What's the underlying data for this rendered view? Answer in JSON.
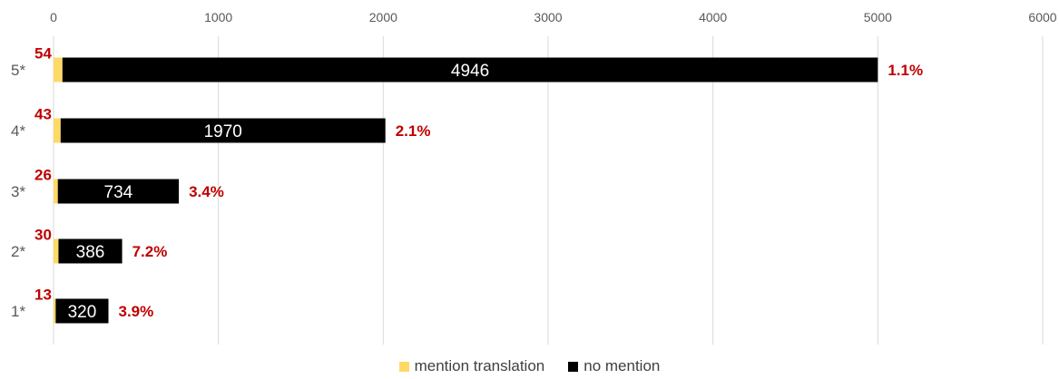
{
  "chart_data": {
    "type": "bar",
    "orientation": "horizontal",
    "stacked": true,
    "categories": [
      "5*",
      "4*",
      "3*",
      "2*",
      "1*"
    ],
    "series": [
      {
        "name": "mention translation",
        "values": [
          54,
          43,
          26,
          30,
          13
        ],
        "color": "#ffd966"
      },
      {
        "name": "no mention",
        "values": [
          4946,
          1970,
          734,
          386,
          320
        ],
        "color": "#000000"
      }
    ],
    "percent_labels": [
      "1.1%",
      "2.1%",
      "3.4%",
      "7.2%",
      "3.9%"
    ],
    "xlim": [
      0,
      6000
    ],
    "xticks": [
      0,
      1000,
      2000,
      3000,
      4000,
      5000,
      6000
    ],
    "x_axis_position": "top",
    "grid": true,
    "legend_position": "bottom",
    "title": "",
    "xlabel": "",
    "ylabel": ""
  }
}
